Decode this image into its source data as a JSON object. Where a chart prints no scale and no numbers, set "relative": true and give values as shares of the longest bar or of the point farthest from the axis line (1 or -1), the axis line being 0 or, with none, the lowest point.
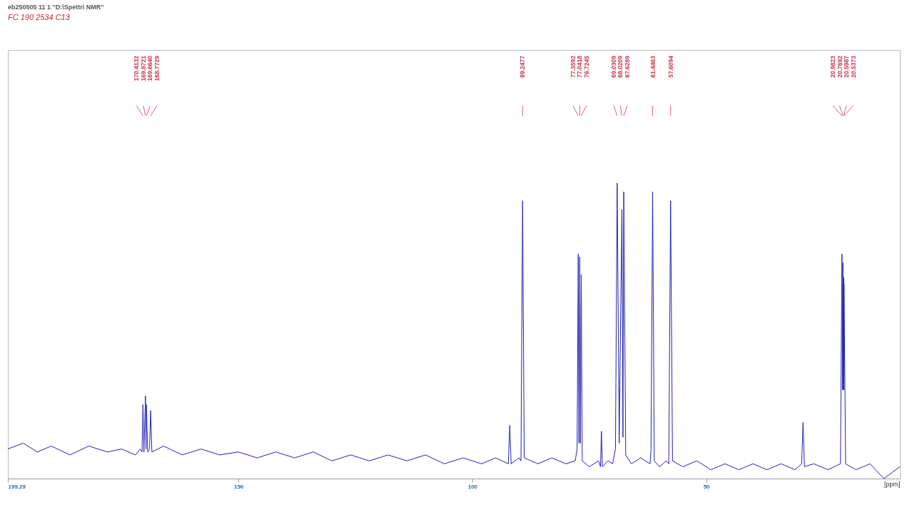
{
  "chart_data": {
    "type": "line",
    "title": "eb250505 11 1 \"D:\\Spettri NMR\"",
    "subtitle": "FC 190 2534 C13",
    "xlabel": "[ppm]",
    "relative": true,
    "grid": false,
    "marker": "none",
    "xlim": [
      199.29,
      8.6
    ],
    "xticks": [
      199.29,
      150,
      100,
      50
    ],
    "annotations": [
      "170.4132",
      "169.8721",
      "169.6640",
      "168.7729",
      "89.2477",
      "77.3592",
      "77.0418",
      "76.7245",
      "69.0309",
      "68.0209",
      "67.6289",
      "61.4463",
      "57.6094",
      "20.9823",
      "20.7692",
      "20.5987",
      "20.5373"
    ],
    "series": [
      {
        "color": "#2222b4",
        "x": [
          199.29,
          196,
          193,
          190,
          186,
          182,
          178,
          175,
          172,
          171,
          170.6,
          170.41,
          170.2,
          169.87,
          169.75,
          169.66,
          169.4,
          169,
          168.77,
          168.5,
          166,
          162,
          158,
          154,
          150,
          146,
          142,
          138,
          134,
          130,
          126,
          122,
          118,
          114,
          110,
          106,
          102,
          98,
          95,
          92.3,
          92,
          91.7,
          90,
          89.6,
          89.25,
          88.9,
          86,
          83,
          80,
          78,
          77.6,
          77.36,
          77.2,
          77.04,
          76.9,
          76.72,
          76.5,
          75,
          73,
          72.6,
          72.4,
          72.2,
          71,
          70,
          69.4,
          69.03,
          68.6,
          68.02,
          67.8,
          67.63,
          67.2,
          66,
          64,
          62,
          61.8,
          61.45,
          61.1,
          60,
          58.5,
          58,
          57.61,
          57.2,
          55,
          52,
          49,
          46,
          43,
          40,
          37,
          34,
          31,
          29.6,
          29.3,
          29,
          27,
          24,
          21.3,
          20.98,
          20.87,
          20.77,
          20.67,
          20.6,
          20.57,
          20.54,
          20.2,
          18,
          15,
          12,
          8.6
        ],
        "values": [
          0.1,
          0.12,
          0.09,
          0.11,
          0.08,
          0.11,
          0.09,
          0.1,
          0.08,
          0.1,
          0.09,
          0.25,
          0.09,
          0.28,
          0.1,
          0.25,
          0.09,
          0.1,
          0.23,
          0.09,
          0.11,
          0.08,
          0.1,
          0.08,
          0.09,
          0.07,
          0.09,
          0.07,
          0.09,
          0.06,
          0.08,
          0.06,
          0.08,
          0.06,
          0.08,
          0.05,
          0.07,
          0.05,
          0.07,
          0.05,
          0.18,
          0.05,
          0.07,
          0.06,
          0.94,
          0.07,
          0.05,
          0.07,
          0.05,
          0.06,
          0.1,
          0.76,
          0.12,
          0.75,
          0.12,
          0.69,
          0.06,
          0.04,
          0.06,
          0.04,
          0.16,
          0.04,
          0.06,
          0.05,
          0.1,
          1.0,
          0.12,
          0.91,
          0.14,
          0.97,
          0.08,
          0.05,
          0.07,
          0.05,
          0.1,
          0.97,
          0.06,
          0.04,
          0.06,
          0.05,
          0.94,
          0.06,
          0.04,
          0.06,
          0.03,
          0.05,
          0.03,
          0.05,
          0.03,
          0.05,
          0.03,
          0.05,
          0.19,
          0.04,
          0.05,
          0.03,
          0.05,
          0.76,
          0.3,
          0.73,
          0.3,
          0.68,
          0.3,
          0.66,
          0.05,
          0.03,
          0.05,
          0,
          0.04
        ]
      }
    ]
  }
}
